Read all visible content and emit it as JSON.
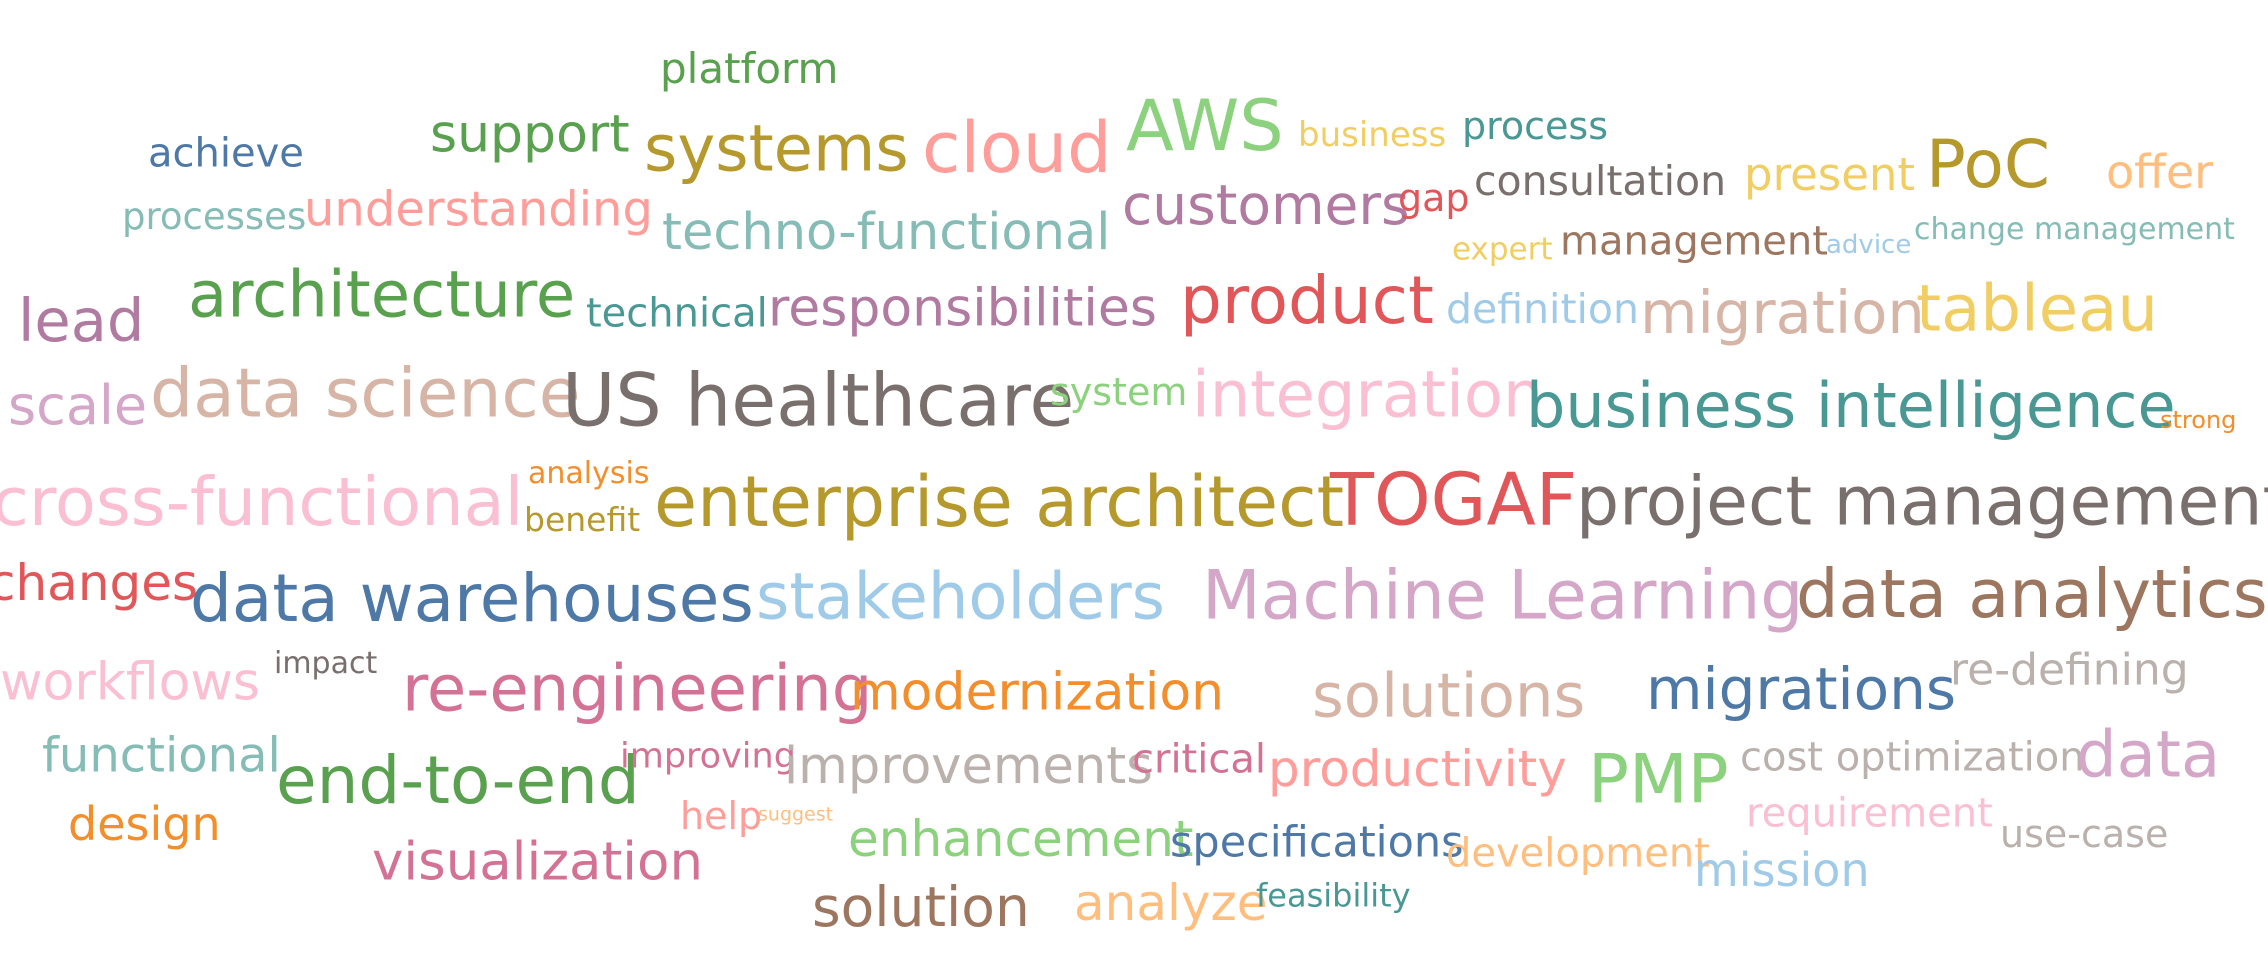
{
  "words": [
    {
      "text": "platform",
      "color": "#59a14f"
    },
    {
      "text": "achieve",
      "color": "#4e79a7"
    },
    {
      "text": "support",
      "color": "#59a14f"
    },
    {
      "text": "systems",
      "color": "#b6992d"
    },
    {
      "text": "cloud",
      "color": "#ff9d9a"
    },
    {
      "text": "AWS",
      "color": "#8cd17d"
    },
    {
      "text": "business",
      "color": "#f1ce63"
    },
    {
      "text": "process",
      "color": "#499894"
    },
    {
      "text": "processes",
      "color": "#86bcb6"
    },
    {
      "text": "understanding",
      "color": "#ff9d9a"
    },
    {
      "text": "techno-functional",
      "color": "#86bcb6"
    },
    {
      "text": "customers",
      "color": "#b07aa1"
    },
    {
      "text": "gap",
      "color": "#e15759"
    },
    {
      "text": "consultation",
      "color": "#79706e"
    },
    {
      "text": "present",
      "color": "#f1ce63"
    },
    {
      "text": "PoC",
      "color": "#b6992d"
    },
    {
      "text": "offer",
      "color": "#ffbe7d"
    },
    {
      "text": "expert",
      "color": "#f1ce63"
    },
    {
      "text": "management",
      "color": "#9d7660"
    },
    {
      "text": "advice",
      "color": "#a0cbe8"
    },
    {
      "text": "change management",
      "color": "#86bcb6"
    },
    {
      "text": "lead",
      "color": "#b07aa1"
    },
    {
      "text": "architecture",
      "color": "#59a14f"
    },
    {
      "text": "technical",
      "color": "#499894"
    },
    {
      "text": "responsibilities",
      "color": "#b07aa1"
    },
    {
      "text": "product",
      "color": "#e15759"
    },
    {
      "text": "definition",
      "color": "#a0cbe8"
    },
    {
      "text": "migration",
      "color": "#d7b5a6"
    },
    {
      "text": "tableau",
      "color": "#f1ce63"
    },
    {
      "text": "scale",
      "color": "#d4a6c8"
    },
    {
      "text": "data science",
      "color": "#d7b5a6"
    },
    {
      "text": "US healthcare",
      "color": "#79706e"
    },
    {
      "text": "system",
      "color": "#8cd17d"
    },
    {
      "text": "integration",
      "color": "#fabfd2"
    },
    {
      "text": "business intelligence",
      "color": "#499894"
    },
    {
      "text": "strong",
      "color": "#f28e2b"
    },
    {
      "text": "cross-functional",
      "color": "#fabfd2"
    },
    {
      "text": "analysis",
      "color": "#f28e2b"
    },
    {
      "text": "benefit",
      "color": "#b6992d"
    },
    {
      "text": "enterprise architect",
      "color": "#b6992d"
    },
    {
      "text": "TOGAF",
      "color": "#e15759"
    },
    {
      "text": "project management",
      "color": "#79706e"
    },
    {
      "text": "changes",
      "color": "#e15759"
    },
    {
      "text": "data warehouses",
      "color": "#4e79a7"
    },
    {
      "text": "stakeholders",
      "color": "#a0cbe8"
    },
    {
      "text": "Machine Learning",
      "color": "#d4a6c8"
    },
    {
      "text": "data analytics",
      "color": "#9d7660"
    },
    {
      "text": "workflows",
      "color": "#fabfd2"
    },
    {
      "text": "impact",
      "color": "#79706e"
    },
    {
      "text": "re-engineering",
      "color": "#d37295"
    },
    {
      "text": "modernization",
      "color": "#f28e2b"
    },
    {
      "text": "solutions",
      "color": "#d7b5a6"
    },
    {
      "text": "migrations",
      "color": "#4e79a7"
    },
    {
      "text": "re-defining",
      "color": "#bab0ac"
    },
    {
      "text": "functional",
      "color": "#86bcb6"
    },
    {
      "text": "end-to-end",
      "color": "#59a14f"
    },
    {
      "text": "improving",
      "color": "#d37295"
    },
    {
      "text": "improvements",
      "color": "#bab0ac"
    },
    {
      "text": "critical",
      "color": "#d37295"
    },
    {
      "text": "productivity",
      "color": "#ff9d9a"
    },
    {
      "text": "PMP",
      "color": "#8cd17d"
    },
    {
      "text": "cost optimization",
      "color": "#bab0ac"
    },
    {
      "text": "data",
      "color": "#d4a6c8"
    },
    {
      "text": "design",
      "color": "#f28e2b"
    },
    {
      "text": "help",
      "color": "#ff9d9a"
    },
    {
      "text": "suggest",
      "color": "#ffbe7d"
    },
    {
      "text": "enhancement",
      "color": "#8cd17d"
    },
    {
      "text": "specifications",
      "color": "#4e79a7"
    },
    {
      "text": "development",
      "color": "#ffbe7d"
    },
    {
      "text": "requirement",
      "color": "#fabfd2"
    },
    {
      "text": "use-case",
      "color": "#bab0ac"
    },
    {
      "text": "visualization",
      "color": "#d37295"
    },
    {
      "text": "mission",
      "color": "#a0cbe8"
    },
    {
      "text": "solution",
      "color": "#9d7660"
    },
    {
      "text": "analyze",
      "color": "#ffbe7d"
    },
    {
      "text": "feasibility",
      "color": "#499894"
    }
  ]
}
